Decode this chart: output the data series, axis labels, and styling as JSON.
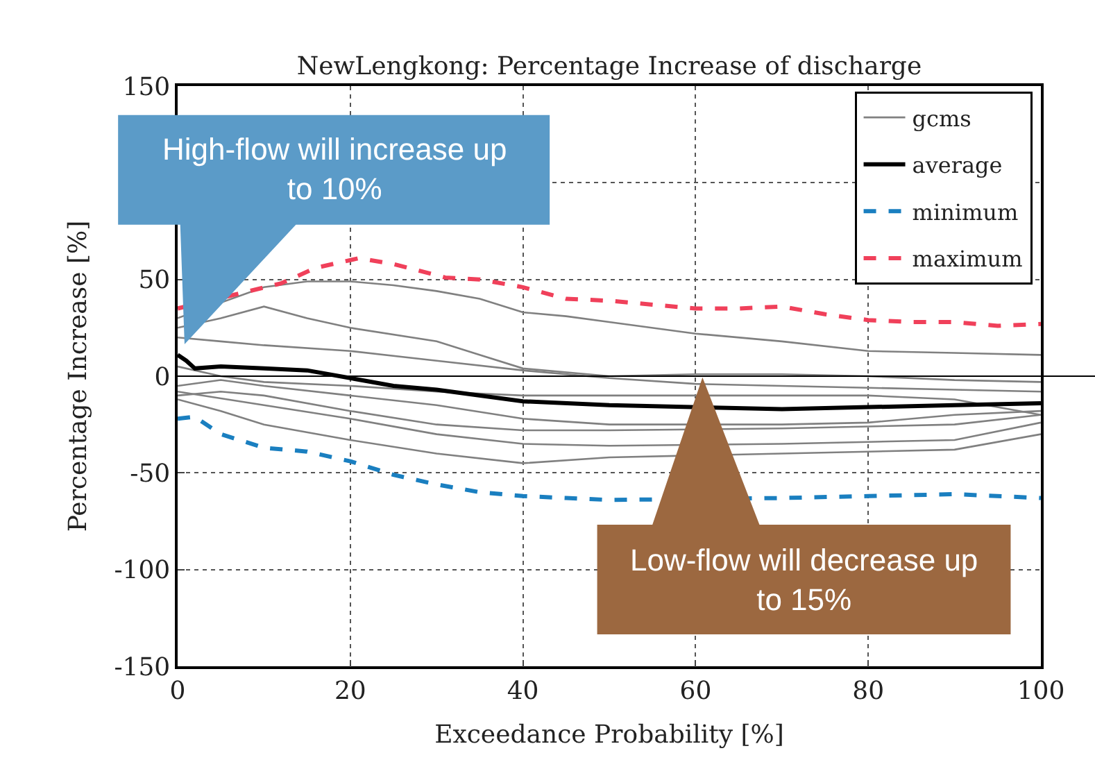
{
  "chart_data": {
    "type": "line",
    "title": "NewLengkong: Percentage Increase of discharge",
    "xlabel": "Exceedance Probability [%]",
    "ylabel": "Percentage Increase [%]",
    "xlim": [
      0,
      100
    ],
    "xticks": [
      0,
      20,
      40,
      60,
      80,
      100
    ],
    "ylim": [
      -150,
      150
    ],
    "yticks": [
      -150,
      -100,
      -50,
      0,
      50,
      {
        "value": 100,
        "label": null
      },
      150
    ],
    "grid": true,
    "legend": "top right",
    "ref_lines": [
      {
        "axis": "y",
        "value": 0,
        "color": "#000000"
      }
    ],
    "annotations": [
      "High-flow will increase up to 10%",
      "Low-flow will decrease up to 15%"
    ],
    "series": [
      {
        "name": "gcms",
        "color": "#808080",
        "x": [
          0,
          10,
          15,
          20,
          25,
          30,
          35,
          40,
          45,
          50,
          60,
          70,
          80,
          90,
          100
        ],
        "values": [
          30,
          46,
          49,
          49,
          47,
          44,
          40,
          33,
          31,
          28,
          22,
          18,
          13,
          12,
          11
        ]
      },
      {
        "color": "#808080",
        "x": [
          0,
          5,
          10,
          15,
          20,
          30,
          40,
          50,
          60,
          70,
          80,
          90,
          100
        ],
        "values": [
          25,
          30,
          36,
          30,
          25,
          18,
          4,
          0,
          1,
          1,
          0,
          -2,
          -3
        ]
      },
      {
        "color": "#808080",
        "x": [
          0,
          5,
          10,
          20,
          30,
          40,
          50,
          60,
          70,
          80,
          90,
          100
        ],
        "values": [
          20,
          18,
          16,
          13,
          8,
          3,
          -1,
          -4,
          -5,
          -6,
          -7,
          -8
        ]
      },
      {
        "color": "#808080",
        "x": [
          0,
          5,
          10,
          20,
          30,
          40,
          50,
          60,
          70,
          80,
          90,
          100
        ],
        "values": [
          5,
          0,
          -3,
          -5,
          -8,
          -10,
          -10,
          -10,
          -10,
          -10,
          -12,
          -20
        ]
      },
      {
        "color": "#808080",
        "x": [
          0,
          5,
          10,
          20,
          30,
          40,
          50,
          70,
          80,
          90,
          100
        ],
        "values": [
          -5,
          -2,
          -5,
          -10,
          -15,
          -22,
          -25,
          -25,
          -24,
          -20,
          -18
        ]
      },
      {
        "color": "#808080",
        "x": [
          0,
          5,
          10,
          20,
          30,
          40,
          50,
          70,
          80,
          90,
          100
        ],
        "values": [
          -10,
          -8,
          -10,
          -18,
          -25,
          -28,
          -28,
          -27,
          -26,
          -25,
          -20
        ]
      },
      {
        "color": "#808080",
        "x": [
          0,
          10,
          20,
          30,
          40,
          50,
          70,
          80,
          90,
          100
        ],
        "values": [
          -8,
          -15,
          -22,
          -30,
          -35,
          -36,
          -35,
          -34,
          -33,
          -24
        ]
      },
      {
        "color": "#808080",
        "x": [
          0,
          5,
          10,
          20,
          30,
          40,
          50,
          70,
          80,
          90,
          100
        ],
        "values": [
          -12,
          -18,
          -25,
          -33,
          -40,
          -45,
          -42,
          -40,
          -39,
          -38,
          -30
        ]
      },
      {
        "name": "average",
        "color": "#000000",
        "x": [
          0,
          1,
          2,
          5,
          10,
          15,
          20,
          25,
          30,
          40,
          50,
          70,
          80,
          90,
          100
        ],
        "values": [
          11,
          8,
          4,
          5,
          4,
          3,
          -1,
          -5,
          -7,
          -13,
          -15,
          -17,
          -16,
          -15,
          -14
        ]
      },
      {
        "name": "minimum",
        "color": "#1a7fc0",
        "line_style": "dashed",
        "x": [
          0,
          2,
          5,
          10,
          15,
          20,
          25,
          30,
          35,
          40,
          45,
          50,
          70,
          80,
          90,
          100
        ],
        "values": [
          -22,
          -21,
          -30,
          -37,
          -39,
          -44,
          -51,
          -56,
          -60,
          -62,
          -63,
          -64,
          -63,
          -62,
          -61,
          -63
        ]
      },
      {
        "name": "maximum",
        "color": "#f0405a",
        "line_style": "dashed",
        "x": [
          0,
          12,
          16,
          21,
          25,
          31,
          35,
          40,
          45,
          50,
          55,
          60,
          65,
          70,
          75,
          80,
          85,
          90,
          95,
          100
        ],
        "values": [
          35,
          48,
          56,
          61,
          58,
          51,
          50,
          46,
          40,
          39,
          37,
          35,
          35,
          36,
          32,
          29,
          28,
          28,
          26,
          27
        ]
      }
    ]
  }
}
